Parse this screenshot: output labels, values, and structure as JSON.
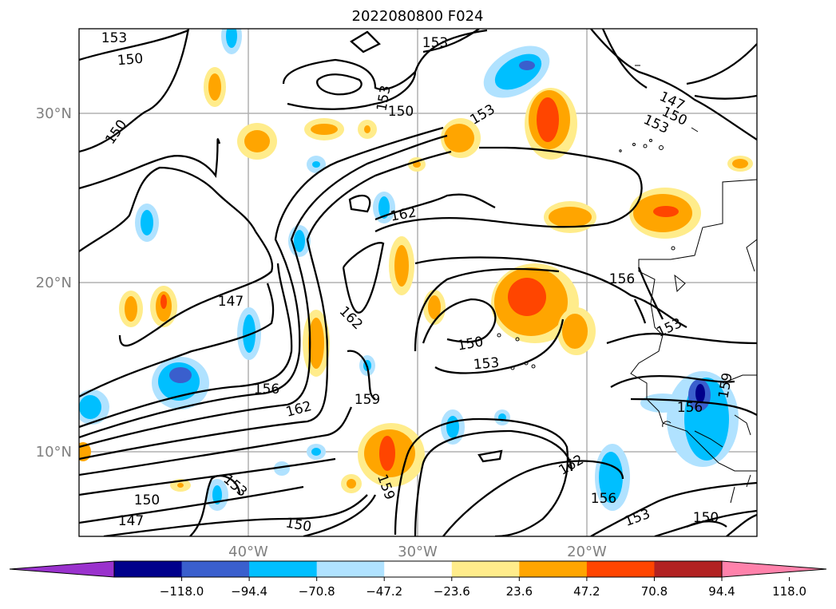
{
  "title": "2022080800 F024",
  "map": {
    "lat_range": [
      5,
      35
    ],
    "lon_range": [
      -50,
      -10
    ],
    "lat_labels": [
      "30°N",
      "20°N",
      "10°N"
    ],
    "lon_labels": [
      "40°W",
      "30°W",
      "20°W"
    ],
    "gridlines": true
  },
  "contour_labels": [
    "153",
    "150",
    "150",
    "153",
    "153",
    "150",
    "153",
    "147",
    "150",
    "153",
    "162",
    "147",
    "162",
    "156",
    "162",
    "159",
    "150",
    "153",
    "162",
    "156",
    "153",
    "150",
    "153",
    "150",
    "147",
    "150",
    "153",
    "159",
    "156",
    "159",
    "156"
  ],
  "colorbar": {
    "orientation": "horizontal",
    "extend": "both",
    "ticks": [
      "−118.0",
      "−94.4",
      "−70.8",
      "−47.2",
      "−23.6",
      "23.6",
      "47.2",
      "70.8",
      "94.4",
      "118.0"
    ],
    "colors": [
      "#9a32cd",
      "#00008b",
      "#3a5fcd",
      "#00bfff",
      "#b0e2ff",
      "#ffffff",
      "#ffec8b",
      "#ffa500",
      "#ff4500",
      "#b22222",
      "#ff82ab"
    ]
  }
}
